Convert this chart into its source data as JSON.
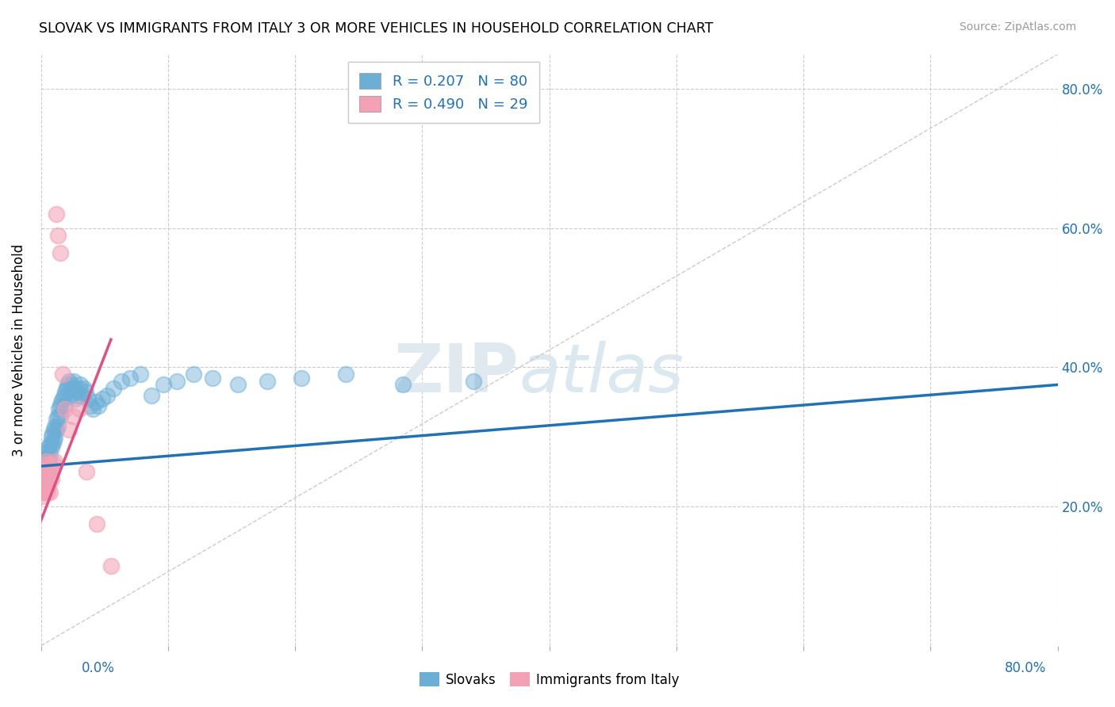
{
  "title": "SLOVAK VS IMMIGRANTS FROM ITALY 3 OR MORE VEHICLES IN HOUSEHOLD CORRELATION CHART",
  "source": "Source: ZipAtlas.com",
  "ylabel": "3 or more Vehicles in Household",
  "legend_label1": "R = 0.207   N = 80",
  "legend_label2": "R = 0.490   N = 29",
  "legend_series1": "Slovaks",
  "legend_series2": "Immigrants from Italy",
  "color_blue": "#6baed6",
  "color_pink": "#f4a0b5",
  "color_blue_text": "#2171b5",
  "color_pink_text": "#e05080",
  "blue_scatter_x": [
    0.001,
    0.001,
    0.001,
    0.002,
    0.002,
    0.002,
    0.002,
    0.003,
    0.003,
    0.003,
    0.003,
    0.004,
    0.004,
    0.004,
    0.005,
    0.005,
    0.005,
    0.006,
    0.006,
    0.006,
    0.007,
    0.007,
    0.007,
    0.008,
    0.008,
    0.009,
    0.009,
    0.01,
    0.01,
    0.011,
    0.011,
    0.012,
    0.012,
    0.013,
    0.013,
    0.014,
    0.015,
    0.015,
    0.016,
    0.017,
    0.018,
    0.018,
    0.019,
    0.02,
    0.021,
    0.022,
    0.023,
    0.024,
    0.025,
    0.026,
    0.027,
    0.028,
    0.029,
    0.03,
    0.031,
    0.032,
    0.034,
    0.035,
    0.037,
    0.039,
    0.041,
    0.043,
    0.045,
    0.048,
    0.052,
    0.057,
    0.063,
    0.07,
    0.078,
    0.087,
    0.096,
    0.107,
    0.12,
    0.135,
    0.155,
    0.178,
    0.205,
    0.24,
    0.285,
    0.34
  ],
  "blue_scatter_y": [
    0.255,
    0.24,
    0.225,
    0.265,
    0.25,
    0.235,
    0.22,
    0.27,
    0.255,
    0.24,
    0.225,
    0.275,
    0.26,
    0.245,
    0.28,
    0.265,
    0.25,
    0.285,
    0.27,
    0.255,
    0.29,
    0.275,
    0.26,
    0.3,
    0.285,
    0.305,
    0.29,
    0.31,
    0.295,
    0.315,
    0.3,
    0.325,
    0.31,
    0.33,
    0.315,
    0.34,
    0.345,
    0.33,
    0.35,
    0.355,
    0.36,
    0.345,
    0.365,
    0.37,
    0.375,
    0.38,
    0.36,
    0.375,
    0.37,
    0.38,
    0.355,
    0.365,
    0.36,
    0.37,
    0.375,
    0.36,
    0.37,
    0.365,
    0.355,
    0.345,
    0.34,
    0.35,
    0.345,
    0.355,
    0.36,
    0.37,
    0.38,
    0.385,
    0.39,
    0.36,
    0.375,
    0.38,
    0.39,
    0.385,
    0.375,
    0.38,
    0.385,
    0.39,
    0.375,
    0.38
  ],
  "pink_scatter_x": [
    0.001,
    0.001,
    0.002,
    0.002,
    0.003,
    0.003,
    0.004,
    0.004,
    0.005,
    0.005,
    0.006,
    0.006,
    0.007,
    0.007,
    0.008,
    0.009,
    0.01,
    0.011,
    0.012,
    0.013,
    0.015,
    0.017,
    0.019,
    0.022,
    0.025,
    0.03,
    0.036,
    0.044,
    0.055
  ],
  "pink_scatter_y": [
    0.24,
    0.215,
    0.25,
    0.22,
    0.26,
    0.23,
    0.265,
    0.235,
    0.255,
    0.22,
    0.26,
    0.23,
    0.25,
    0.22,
    0.24,
    0.255,
    0.26,
    0.265,
    0.62,
    0.59,
    0.565,
    0.39,
    0.34,
    0.31,
    0.33,
    0.34,
    0.25,
    0.175,
    0.115
  ],
  "xmin": 0.0,
  "xmax": 0.8,
  "ymin": 0.0,
  "ymax": 0.85,
  "blue_line_x0": 0.0,
  "blue_line_y0": 0.258,
  "blue_line_x1": 0.8,
  "blue_line_y1": 0.375,
  "pink_line_x0": 0.0,
  "pink_line_y0": 0.18,
  "pink_line_x1": 0.055,
  "pink_line_y1": 0.44
}
